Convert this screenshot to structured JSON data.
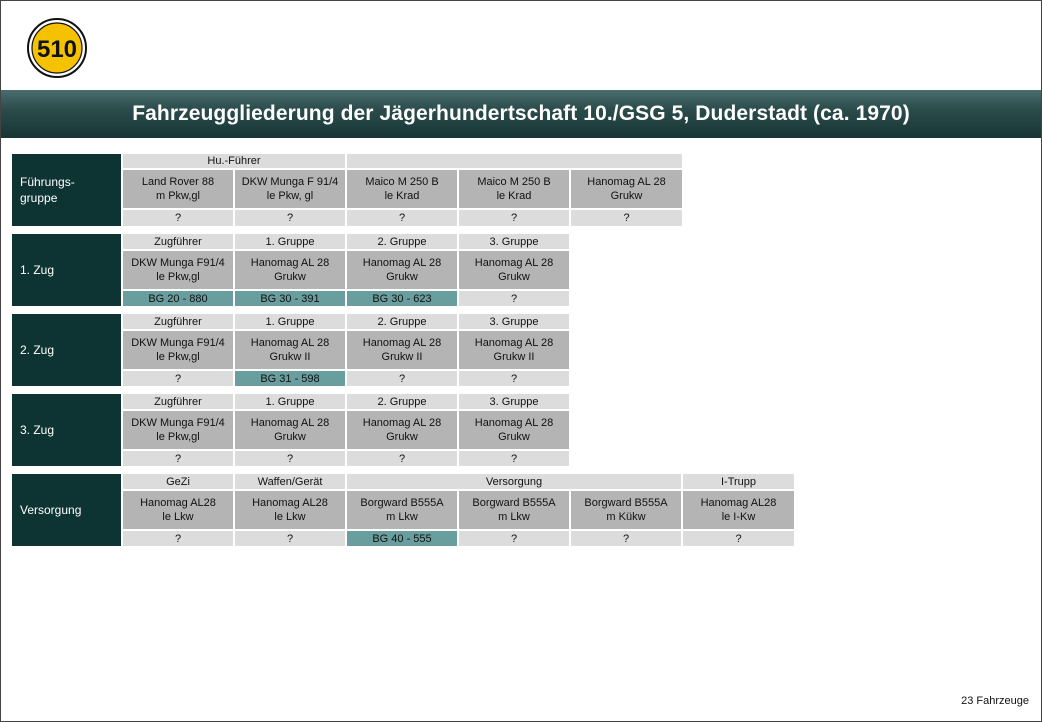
{
  "logo": {
    "number": "510"
  },
  "title": "Fahrzeuggliederung der Jägerhundertschaft 10./GSG 5, Duderstadt (ca. 1970)",
  "groups": [
    {
      "label": "Führungs-\ngruppe",
      "headers": [
        "Hu.-Führer",
        ""
      ],
      "vehicles": [
        "Land Rover 88\nm Pkw,gl",
        "DKW Munga F 91/4\nle Pkw, gl",
        "Maico M 250 B\nle Krad",
        "Maico M 250 B\nle Krad",
        "Hanomag AL 28\nGrukw"
      ],
      "statuses": [
        "?",
        "?",
        "?",
        "?",
        "?"
      ]
    },
    {
      "label": "1. Zug",
      "headers": [
        "Zugführer",
        "1. Gruppe",
        "2. Gruppe",
        "3. Gruppe"
      ],
      "vehicles": [
        "DKW Munga F91/4\nle Pkw,gl",
        "Hanomag AL 28\nGrukw",
        "Hanomag AL 28\nGrukw",
        "Hanomag AL 28\nGrukw"
      ],
      "statuses": [
        "BG 20 - 880",
        "BG 30 - 391",
        "BG 30 - 623",
        "?"
      ]
    },
    {
      "label": "2. Zug",
      "headers": [
        "Zugführer",
        "1. Gruppe",
        "2. Gruppe",
        "3. Gruppe"
      ],
      "vehicles": [
        "DKW Munga F91/4\nle Pkw,gl",
        "Hanomag AL 28\nGrukw II",
        "Hanomag AL 28\nGrukw II",
        "Hanomag AL 28\nGrukw II"
      ],
      "statuses": [
        "?",
        "BG 31 - 598",
        "?",
        "?"
      ]
    },
    {
      "label": "3. Zug",
      "headers": [
        "Zugführer",
        "1. Gruppe",
        "2. Gruppe",
        "3. Gruppe"
      ],
      "vehicles": [
        "DKW Munga F91/4\nle Pkw,gl",
        "Hanomag AL 28\nGrukw",
        "Hanomag AL 28\nGrukw",
        "Hanomag AL 28\nGrukw"
      ],
      "statuses": [
        "?",
        "?",
        "?",
        "?"
      ]
    },
    {
      "label": "Versorgung",
      "headers": [
        "GeZi",
        "Waffen/Gerät",
        "Versorgung",
        "I-Trupp"
      ],
      "vehicles": [
        "Hanomag AL28\nle Lkw",
        "Hanomag AL28\nle Lkw",
        "Borgward B555A\nm Lkw",
        "Borgward B555A\nm Lkw",
        "Borgward B555A\nm Kükw",
        "Hanomag AL28\nle I-Kw"
      ],
      "statuses": [
        "?",
        "?",
        "BG 40 - 555",
        "?",
        "?",
        "?"
      ]
    }
  ],
  "footer": {
    "total": "23 Fahrzeuge"
  },
  "colors": {
    "banner": "#1f4242",
    "label_bg": "#0e3333",
    "header_bg": "#dcdcdc",
    "vehicle_bg": "#b4b4b4",
    "highlight": "#6a9e9e"
  }
}
